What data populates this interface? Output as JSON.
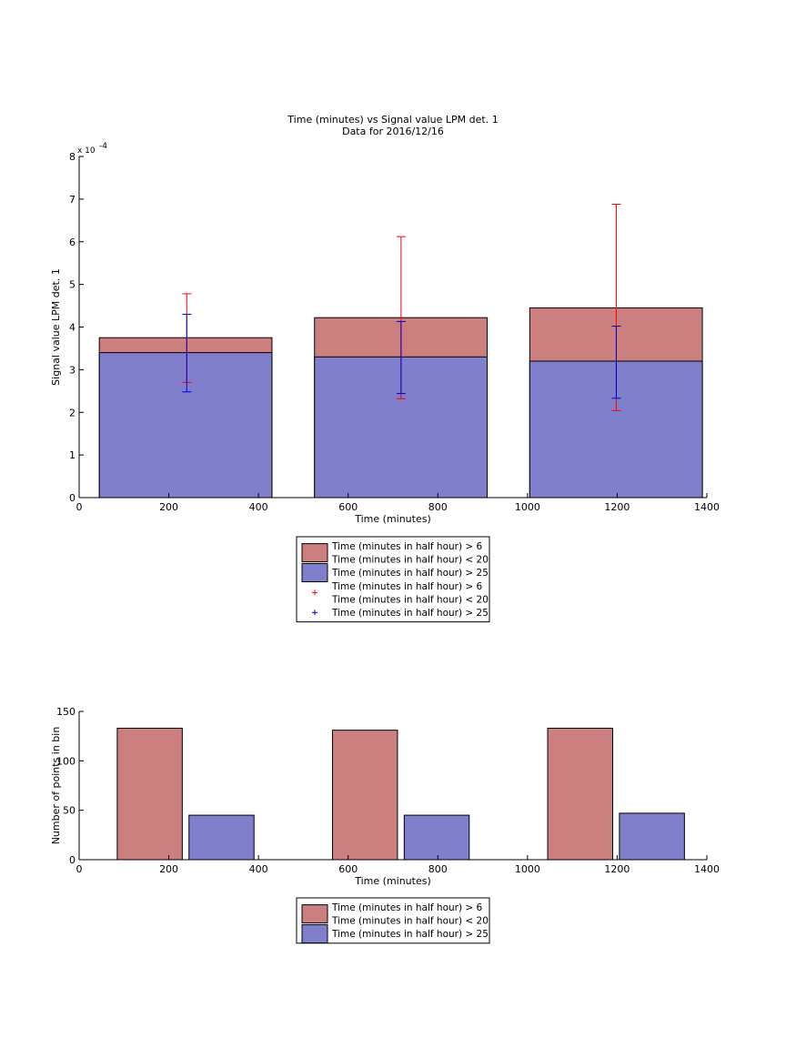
{
  "colors": {
    "red_fill": "#cc7f7f",
    "blue_fill": "#7f7fcc",
    "red_err": "#ff0000",
    "blue_err": "#0000cc",
    "axis": "#000000"
  },
  "chart_data": [
    {
      "type": "bar",
      "title_lines": [
        "Time (minutes) vs Signal value LPM det. 1",
        "Data for 2016/12/16"
      ],
      "xlabel": "Time (minutes)",
      "ylabel": "Signal value LPM det. 1",
      "y_exponent_label": "x 10",
      "y_exponent_power": "-4",
      "xlim": [
        0,
        1400
      ],
      "ylim": [
        0,
        8
      ],
      "xticks": [
        "0",
        "200",
        "400",
        "600",
        "800",
        "1000",
        "1200",
        "1400"
      ],
      "yticks": [
        "0",
        "1",
        "2",
        "3",
        "4",
        "5",
        "6",
        "7",
        "8"
      ],
      "bar_layout": "overlaid",
      "bins": [
        {
          "x_start": 45,
          "x_end": 430,
          "red": 3.75,
          "blue": 3.4,
          "red_err_center": 240,
          "red_err": [
            2.7,
            4.78
          ],
          "blue_err": [
            2.48,
            4.3
          ]
        },
        {
          "x_start": 525,
          "x_end": 910,
          "red": 4.22,
          "blue": 3.3,
          "red_err_center": 718,
          "red_err": [
            2.32,
            6.12
          ],
          "blue_err": [
            2.44,
            4.13
          ]
        },
        {
          "x_start": 1005,
          "x_end": 1390,
          "red": 4.45,
          "blue": 3.2,
          "red_err_center": 1198,
          "red_err": [
            2.04,
            6.88
          ],
          "blue_err": [
            2.33,
            4.02
          ]
        }
      ],
      "legend": [
        {
          "kind": "patch",
          "color": "red",
          "lines": [
            "Time (minutes in half hour) > 6",
            "Time (minutes in half hour) < 20"
          ]
        },
        {
          "kind": "patch",
          "color": "blue",
          "lines": [
            "Time (minutes in half hour) > 25"
          ]
        },
        {
          "kind": "marker",
          "color": "red",
          "lines": [
            "Time (minutes in half hour) > 6",
            "Time (minutes in half hour) < 20"
          ]
        },
        {
          "kind": "marker",
          "color": "blue",
          "lines": [
            "Time (minutes in half hour) > 25"
          ]
        }
      ]
    },
    {
      "type": "bar",
      "xlabel": "Time (minutes)",
      "ylabel": "Number of points in bin",
      "xlim": [
        0,
        1400
      ],
      "ylim": [
        0,
        150
      ],
      "xticks": [
        "0",
        "200",
        "400",
        "600",
        "800",
        "1000",
        "1200",
        "1400"
      ],
      "yticks": [
        "0",
        "50",
        "100",
        "150"
      ],
      "bars": [
        {
          "series": "red",
          "x_start": 85,
          "x_end": 230,
          "value": 133
        },
        {
          "series": "blue",
          "x_start": 245,
          "x_end": 390,
          "value": 45
        },
        {
          "series": "red",
          "x_start": 565,
          "x_end": 710,
          "value": 131
        },
        {
          "series": "blue",
          "x_start": 725,
          "x_end": 870,
          "value": 45
        },
        {
          "series": "red",
          "x_start": 1045,
          "x_end": 1190,
          "value": 133
        },
        {
          "series": "blue",
          "x_start": 1205,
          "x_end": 1350,
          "value": 47
        }
      ],
      "legend": [
        {
          "kind": "patch",
          "color": "red",
          "lines": [
            "Time (minutes in half hour) > 6",
            "Time (minutes in half hour) < 20"
          ]
        },
        {
          "kind": "patch",
          "color": "blue",
          "lines": [
            "Time (minutes in half hour) > 25"
          ]
        }
      ]
    }
  ]
}
